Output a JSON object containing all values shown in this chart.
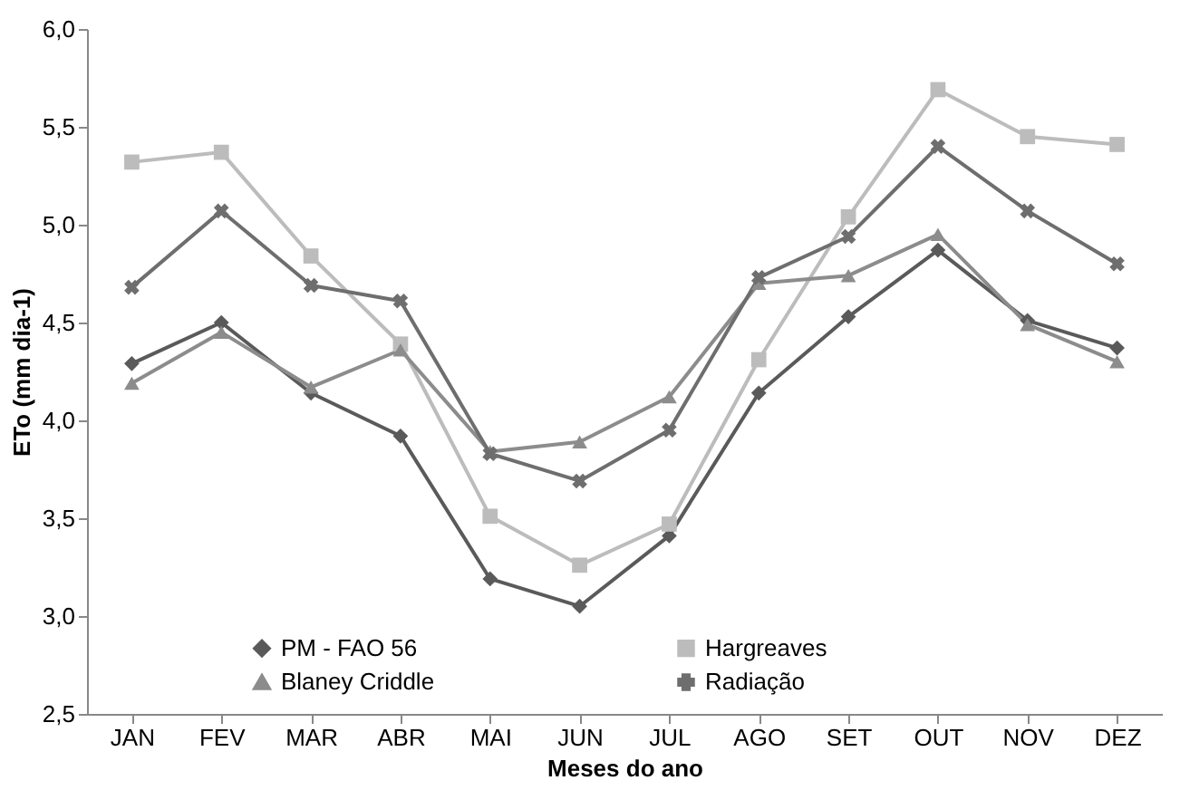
{
  "chart_data": {
    "type": "line",
    "xlabel": "Meses do ano",
    "ylabel": "ETo (mm dia-1)",
    "categories": [
      "JAN",
      "FEV",
      "MAR",
      "ABR",
      "MAI",
      "JUN",
      "JUL",
      "AGO",
      "SET",
      "OUT",
      "NOV",
      "DEZ"
    ],
    "ylim": [
      2.5,
      6.0
    ],
    "yticks": [
      {
        "value": 2.5,
        "label": "2,5"
      },
      {
        "value": 3.0,
        "label": "3,0"
      },
      {
        "value": 3.5,
        "label": "3,5"
      },
      {
        "value": 4.0,
        "label": "4,0"
      },
      {
        "value": 4.5,
        "label": "4,5"
      },
      {
        "value": 5.0,
        "label": "5,0"
      },
      {
        "value": 5.5,
        "label": "5,5"
      },
      {
        "value": 6.0,
        "label": "6,0"
      }
    ],
    "grid": false,
    "legend": "bottom",
    "series": [
      {
        "name": "PM - FAO 56",
        "color": "#5a5a5a",
        "marker": "diamond",
        "values": [
          4.29,
          4.5,
          4.14,
          3.92,
          3.19,
          3.05,
          3.41,
          4.14,
          4.53,
          4.87,
          4.51,
          4.37
        ]
      },
      {
        "name": "Hargreaves",
        "color": "#bcbcbc",
        "marker": "square",
        "values": [
          5.32,
          5.37,
          4.84,
          4.39,
          3.51,
          3.26,
          3.47,
          4.31,
          5.04,
          5.69,
          5.45,
          5.41
        ]
      },
      {
        "name": "Blaney Criddle",
        "color": "#8c8c8c",
        "marker": "triangle",
        "values": [
          4.19,
          4.45,
          4.17,
          4.36,
          3.84,
          3.89,
          4.12,
          4.7,
          4.74,
          4.95,
          4.49,
          4.3
        ]
      },
      {
        "name": "Radiação",
        "color": "#6e6e6e",
        "marker": "cross",
        "values": [
          4.68,
          5.07,
          4.69,
          4.61,
          3.83,
          3.69,
          3.95,
          4.73,
          4.94,
          5.4,
          5.07,
          4.8
        ]
      }
    ]
  }
}
